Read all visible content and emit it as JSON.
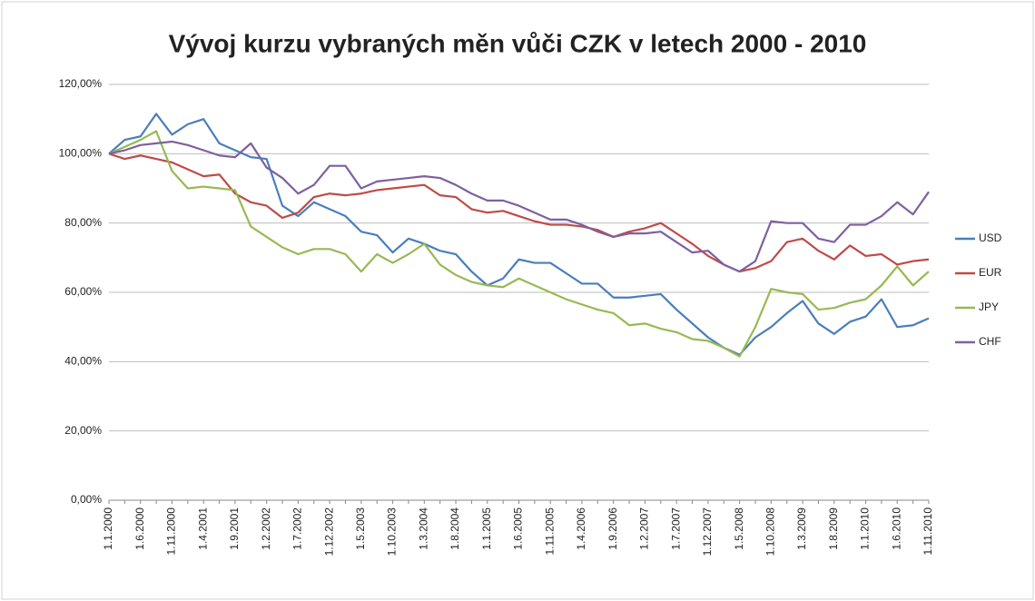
{
  "chart_data": {
    "type": "line",
    "title": "Vývoj kurzu vybraných měn vůči CZK v letech 2000 - 2010",
    "categories": [
      "1.1.2000",
      null,
      "1.6.2000",
      null,
      "1.11.2000",
      null,
      "1.4.2001",
      null,
      "1.9.2001",
      null,
      "1.2.2002",
      null,
      "1.7.2002",
      null,
      "1.12.2002",
      null,
      "1.5.2003",
      null,
      "1.10.2003",
      null,
      "1.3.2004",
      null,
      "1.8.2004",
      null,
      "1.1.2005",
      null,
      "1.6.2005",
      null,
      "1.11.2005",
      null,
      "1.4.2006",
      null,
      "1.9.2006",
      null,
      "1.2.2007",
      null,
      "1.7.2007",
      null,
      "1.12.2007",
      null,
      "1.5.2008",
      null,
      "1.10.2008",
      null,
      "1.3.2009",
      null,
      "1.8.2009",
      null,
      "1.1.2010",
      null,
      "1.6.2010",
      null,
      "1.11.2010"
    ],
    "series": [
      {
        "name": "USD",
        "color": "#4a7ebb",
        "values": [
          100,
          104,
          105,
          111.5,
          105.5,
          108.5,
          110,
          103,
          101,
          99,
          98.5,
          85,
          82,
          86,
          84,
          82,
          77.5,
          76.5,
          71.5,
          75.5,
          74,
          72,
          71,
          66,
          62,
          64,
          69.5,
          68.5,
          68.5,
          65.5,
          62.5,
          62.5,
          58.5,
          58.5,
          59,
          59.5,
          55,
          51,
          47,
          44,
          42,
          47,
          50,
          54,
          57.5,
          51,
          48,
          51.5,
          53,
          58,
          50,
          50.5,
          52.5
        ]
      },
      {
        "name": "EUR",
        "color": "#be4b48",
        "values": [
          100,
          98.5,
          99.5,
          98.5,
          97.5,
          95.5,
          93.5,
          94,
          88.5,
          86,
          85,
          81.5,
          83,
          87.5,
          88.5,
          88,
          88.5,
          89.5,
          90,
          90.5,
          91,
          88,
          87.5,
          84,
          83,
          83.5,
          82,
          80.5,
          79.5,
          79.5,
          79,
          78,
          76,
          77.5,
          78.5,
          80,
          77,
          74,
          70.5,
          68,
          66,
          67,
          69,
          74.5,
          75.5,
          72,
          69.5,
          73.5,
          70.5,
          71,
          68,
          69,
          69.5
        ]
      },
      {
        "name": "JPY",
        "color": "#98b954",
        "values": [
          100,
          102,
          104,
          106.5,
          95,
          90,
          90.5,
          90,
          89.5,
          79,
          76,
          73,
          71,
          72.5,
          72.5,
          71,
          66,
          71,
          68.5,
          71,
          74,
          68,
          65,
          63,
          62,
          61.5,
          64,
          62,
          60,
          58,
          56.5,
          55,
          54,
          50.5,
          51,
          49.5,
          48.5,
          46.5,
          46,
          44,
          41.5,
          50,
          61,
          60,
          59.5,
          55,
          55.5,
          57,
          58,
          62,
          67.5,
          62,
          66
        ]
      },
      {
        "name": "CHF",
        "color": "#7d60a0",
        "values": [
          100,
          101,
          102.5,
          103,
          103.5,
          102.5,
          101,
          99.5,
          99,
          103,
          96,
          93,
          88.5,
          91,
          96.5,
          96.5,
          90,
          92,
          92.5,
          93,
          93.5,
          93,
          91,
          88.5,
          86.5,
          86.5,
          85,
          83,
          81,
          81,
          79.5,
          77.5,
          76,
          77,
          77,
          77.5,
          74.5,
          71.5,
          72,
          68,
          66,
          69,
          80.5,
          80,
          80,
          75.5,
          74.5,
          79.5,
          79.5,
          82,
          86,
          82.5,
          89
        ]
      }
    ],
    "ylim": [
      0,
      120
    ],
    "yticks": [
      {
        "value": 0,
        "label": "0,00%"
      },
      {
        "value": 20,
        "label": "20,00%"
      },
      {
        "value": 40,
        "label": "40,00%"
      },
      {
        "value": 60,
        "label": "60,00%"
      },
      {
        "value": 80,
        "label": "80,00%"
      },
      {
        "value": 100,
        "label": "100,00%"
      },
      {
        "value": 120,
        "label": "120,00%"
      }
    ],
    "grid": true,
    "legend": "right"
  }
}
